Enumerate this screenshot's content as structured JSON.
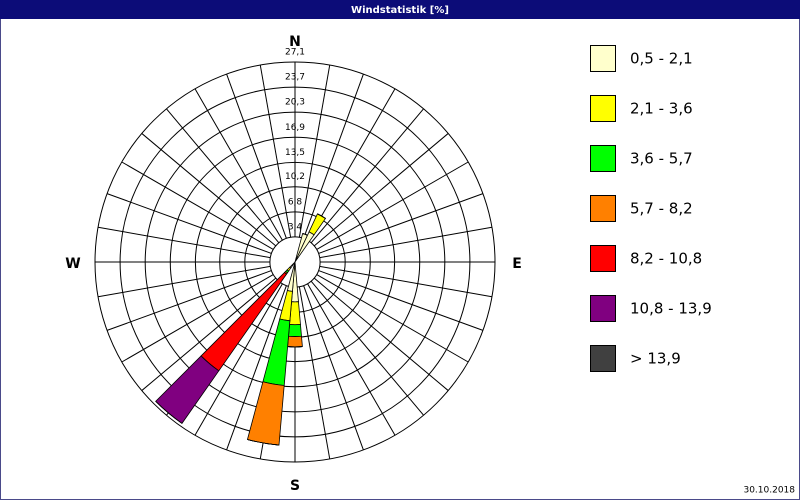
{
  "chart_data": {
    "type": "windrose",
    "title": "Windstatistik [%]",
    "compass": [
      "N",
      "E",
      "S",
      "W"
    ],
    "directions": [
      20,
      30,
      180,
      190,
      220
    ],
    "sector_width": 10,
    "rlim": [
      0,
      27.1
    ],
    "rticks": [
      {
        "value": 3.4,
        "label": "3,4"
      },
      {
        "value": 6.8,
        "label": "6,8"
      },
      {
        "value": 10.2,
        "label": "10,2"
      },
      {
        "value": 13.5,
        "label": "13,5"
      },
      {
        "value": 16.9,
        "label": "16,9"
      },
      {
        "value": 20.3,
        "label": "20,3"
      },
      {
        "value": 23.7,
        "label": "23,7"
      },
      {
        "value": 27.1,
        "label": "27,1"
      }
    ],
    "series": [
      {
        "name": "0,5 - 2,1",
        "color": "#ffffcc",
        "values": [
          4.0,
          4.5,
          5.4,
          4.0,
          1.0
        ]
      },
      {
        "name": "2,1 - 3,6",
        "color": "#ffff00",
        "values": [
          0,
          2.7,
          3.1,
          4.0,
          0.5
        ]
      },
      {
        "name": "3,6 - 5,7",
        "color": "#00ff00",
        "values": [
          0,
          0,
          1.6,
          8.8,
          0.3
        ]
      },
      {
        "name": "5,7 - 8,2",
        "color": "#ff8000",
        "values": [
          0,
          0,
          1.4,
          8.1,
          0.2
        ]
      },
      {
        "name": "8,2 - 10,8",
        "color": "#ff0000",
        "values": [
          0,
          0,
          0,
          0,
          16.0
        ]
      },
      {
        "name": "10,8 - 13,9",
        "color": "#800080",
        "values": [
          0,
          0,
          0,
          0,
          8.7
        ]
      },
      {
        "name": "> 13,9",
        "color": "#404040",
        "values": [
          0,
          0,
          0,
          0,
          0
        ]
      }
    ],
    "date": "30.10.2018"
  }
}
